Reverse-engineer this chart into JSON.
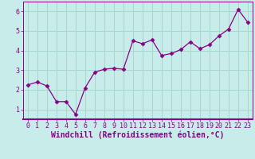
{
  "x": [
    0,
    1,
    2,
    3,
    4,
    5,
    6,
    7,
    8,
    9,
    10,
    11,
    12,
    13,
    14,
    15,
    16,
    17,
    18,
    19,
    20,
    21,
    22,
    23
  ],
  "y": [
    2.25,
    2.4,
    2.2,
    1.4,
    1.4,
    0.75,
    2.1,
    2.9,
    3.05,
    3.1,
    3.05,
    4.5,
    4.35,
    4.55,
    3.75,
    3.85,
    4.05,
    4.45,
    4.1,
    4.3,
    4.75,
    5.1,
    6.1,
    5.45
  ],
  "line_color": "#880088",
  "marker": "D",
  "marker_size": 2.5,
  "bg_color": "#c8ecea",
  "grid_color": "#a8d8cc",
  "xlabel": "Windchill (Refroidissement éolien,°C)",
  "xlim": [
    -0.5,
    23.5
  ],
  "ylim": [
    0.5,
    6.5
  ],
  "yticks": [
    1,
    2,
    3,
    4,
    5,
    6
  ],
  "xticks": [
    0,
    1,
    2,
    3,
    4,
    5,
    6,
    7,
    8,
    9,
    10,
    11,
    12,
    13,
    14,
    15,
    16,
    17,
    18,
    19,
    20,
    21,
    22,
    23
  ],
  "xlabel_fontsize": 7.0,
  "tick_fontsize": 6.0,
  "line_width": 0.9,
  "spine_color": "#880088",
  "label_color": "#880088",
  "separator_color": "#880088"
}
